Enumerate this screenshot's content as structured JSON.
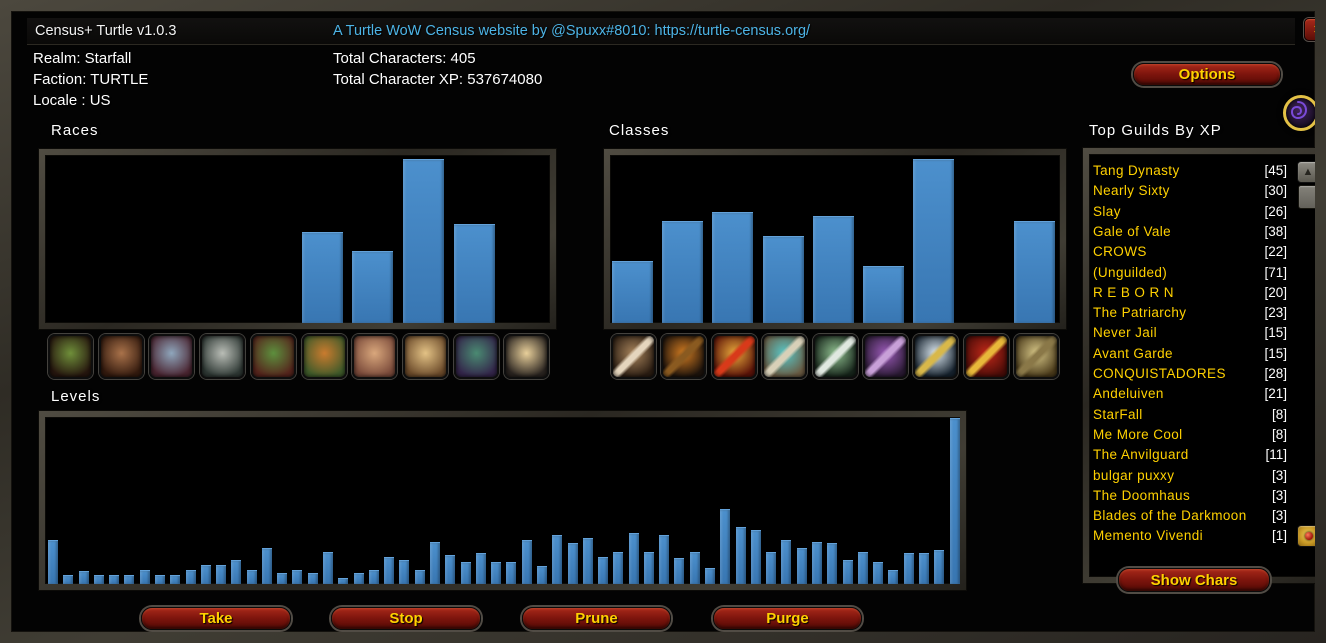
{
  "window": {
    "title": "Census+ Turtle v1.0.3",
    "link": "A Turtle WoW Census website by @Spuxx#8010: https://turtle-census.org/"
  },
  "info": {
    "realm": "Realm: Starfall",
    "faction": "Faction: TURTLE",
    "locale": "Locale : US",
    "total_characters": "Total Characters: 405",
    "total_xp": "Total Character XP: 537674080"
  },
  "sections": {
    "races": "Races",
    "classes": "Classes",
    "guilds": "Top Guilds By XP",
    "levels": "Levels"
  },
  "buttons": {
    "options": "Options",
    "take": "Take",
    "stop": "Stop",
    "prune": "Prune",
    "purge": "Purge",
    "show_chars": "Show Chars"
  },
  "icons": {
    "close": "×",
    "scroll_up": "▲",
    "scroll_down": "▼",
    "minimap_button": "purple-spiral"
  },
  "colors": {
    "bar_blue": "#3d7ebd",
    "gold_text": "#ffd100",
    "link_blue": "#4db4e6",
    "button_red": "#7e150d"
  },
  "chart_data": [
    {
      "id": "races",
      "type": "bar",
      "title": "Races",
      "note": "no axis labels shown; values are bar heights as % of chart height",
      "categories": [
        "Orc",
        "Tauren",
        "Troll",
        "Undead",
        "Goblin",
        "Dwarf",
        "Gnome",
        "Human",
        "Night Elf",
        "High Elf"
      ],
      "heights_pct": [
        0,
        0,
        0,
        0,
        0,
        54,
        43,
        98,
        59,
        0
      ]
    },
    {
      "id": "classes",
      "type": "bar",
      "title": "Classes",
      "note": "no axis labels shown; values are bar heights as % of chart height",
      "categories": [
        "Druid",
        "Hunter",
        "Mage",
        "Paladin",
        "Rogue",
        "Warlock",
        "Warrior",
        "Shaman",
        "Priest"
      ],
      "heights_pct": [
        37,
        61,
        66,
        52,
        64,
        34,
        98,
        0,
        61
      ]
    },
    {
      "id": "levels",
      "type": "bar",
      "title": "Levels",
      "note": "one bar per character level; no axis labels shown; values are bar heights as % of chart height",
      "x_range": [
        1,
        60
      ],
      "heights_pct": [
        26,
        5,
        7,
        5,
        5,
        5,
        8,
        5,
        5,
        8,
        11,
        11,
        14,
        8,
        21,
        6,
        8,
        6,
        19,
        3,
        6,
        8,
        16,
        14,
        8,
        25,
        17,
        13,
        18,
        13,
        13,
        26,
        10,
        29,
        24,
        27,
        16,
        19,
        30,
        19,
        29,
        15,
        19,
        9,
        45,
        34,
        32,
        19,
        26,
        21,
        25,
        24,
        14,
        19,
        13,
        8,
        18,
        18,
        20,
        100
      ]
    }
  ],
  "race_icons": [
    {
      "name": "orc",
      "c1": "#6f8f3a",
      "c2": "#26160e"
    },
    {
      "name": "tauren",
      "c1": "#a9724a",
      "c2": "#331a0e"
    },
    {
      "name": "troll",
      "c1": "#8fa6bc",
      "c2": "#4a2430"
    },
    {
      "name": "undead",
      "c1": "#b9bdb6",
      "c2": "#2e3834"
    },
    {
      "name": "goblin",
      "c1": "#5d8f3d",
      "c2": "#55241c"
    },
    {
      "name": "dwarf",
      "c1": "#c97b2e",
      "c2": "#3f5a2a"
    },
    {
      "name": "gnome",
      "c1": "#d9a77c",
      "c2": "#7a4a3a"
    },
    {
      "name": "human",
      "c1": "#e3c285",
      "c2": "#6b4a2a"
    },
    {
      "name": "night-elf",
      "c1": "#4a8a72",
      "c2": "#33254a"
    },
    {
      "name": "high-elf",
      "c1": "#e8cf9a",
      "c2": "#2a2420"
    }
  ],
  "class_icons": [
    {
      "name": "druid-claw",
      "c1": "#a8845c",
      "c2": "#2b1d12",
      "accent": "#e5d5bd"
    },
    {
      "name": "hunter-bow",
      "c1": "#d07a20",
      "c2": "#1d130c",
      "accent": "#8a5a20"
    },
    {
      "name": "mage-staff",
      "c1": "#e8a83a",
      "c2": "#5a1208",
      "accent": "#d83a1a"
    },
    {
      "name": "paladin-hammer",
      "c1": "#58c8c8",
      "c2": "#6a5a42",
      "accent": "#d8d0b8"
    },
    {
      "name": "rogue-dagger",
      "c1": "#8fbf8f",
      "c2": "#16241a",
      "accent": "#e0e8e0"
    },
    {
      "name": "warlock",
      "c1": "#9a5ab8",
      "c2": "#2a1a33",
      "accent": "#c8a0d8"
    },
    {
      "name": "warrior-sword",
      "c1": "#dce8f0",
      "c2": "#16222e",
      "accent": "#d8b84a"
    },
    {
      "name": "shaman-crest",
      "c1": "#c02818",
      "c2": "#4a0c08",
      "accent": "#e8b83a"
    },
    {
      "name": "priest-hammer",
      "c1": "#d8c888",
      "c2": "#4a3a1a",
      "accent": "#8a7848"
    }
  ],
  "guilds": {
    "rows": [
      {
        "name": "Tang Dynasty",
        "count": "[45]"
      },
      {
        "name": "Nearly Sixty",
        "count": "[30]"
      },
      {
        "name": "Slay",
        "count": "[26]"
      },
      {
        "name": "Gale of Vale",
        "count": "[38]"
      },
      {
        "name": "CROWS",
        "count": "[22]"
      },
      {
        "name": "(Unguilded)",
        "count": "[71]"
      },
      {
        "name": "R E B O R N",
        "count": "[20]"
      },
      {
        "name": "The Patriarchy",
        "count": "[23]"
      },
      {
        "name": "Never Jail",
        "count": "[15]"
      },
      {
        "name": "Avant Garde",
        "count": "[15]"
      },
      {
        "name": "CONQUISTADORES",
        "count": "[28]"
      },
      {
        "name": "Andeluiven",
        "count": "[21]"
      },
      {
        "name": "StarFall",
        "count": "[8]"
      },
      {
        "name": "Me More Cool",
        "count": "[8]"
      },
      {
        "name": "The Anvilguard",
        "count": "[11]"
      },
      {
        "name": "bulgar puxxy",
        "count": "[3]"
      },
      {
        "name": "The Doomhaus",
        "count": "[3]"
      },
      {
        "name": "Blades of the Darkmoon",
        "count": "[3]"
      },
      {
        "name": "Memento Vivendi",
        "count": "[1]"
      }
    ]
  }
}
